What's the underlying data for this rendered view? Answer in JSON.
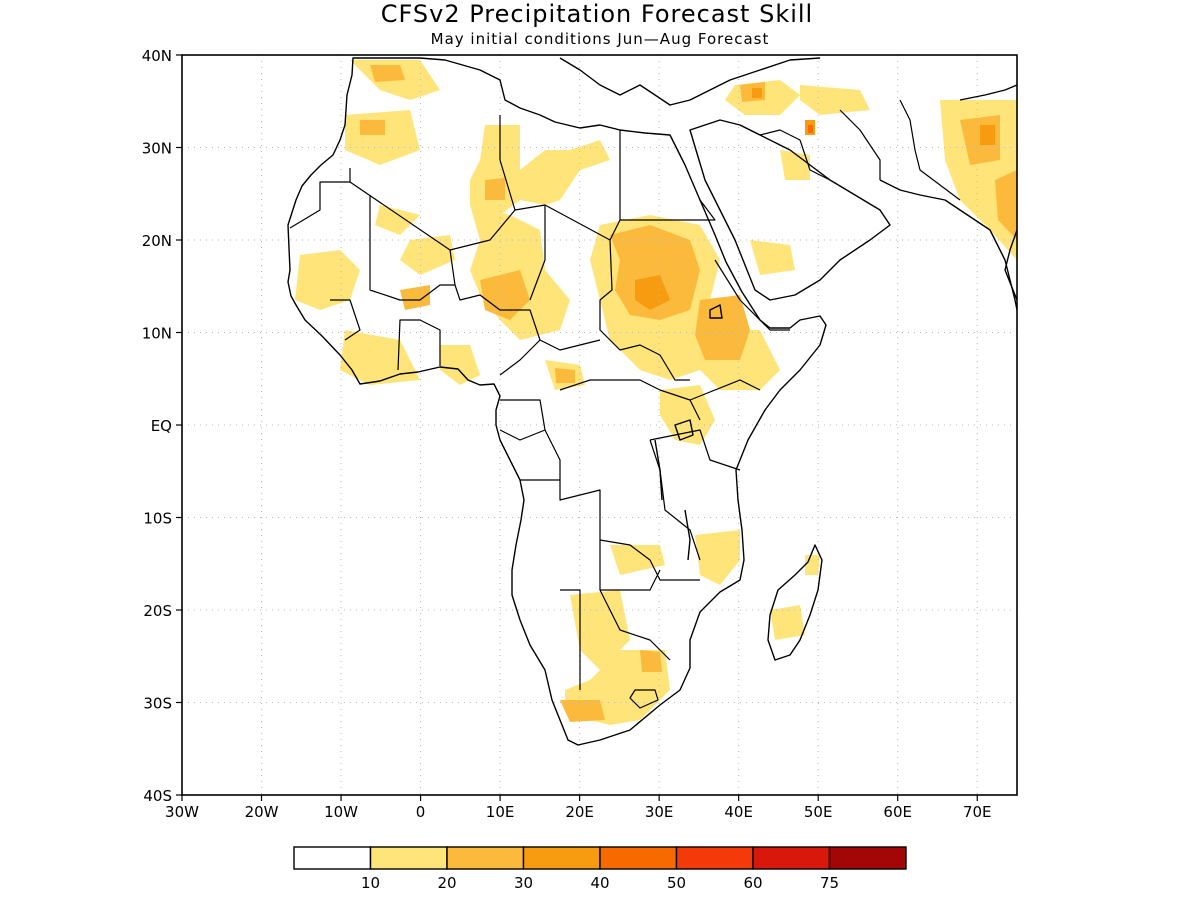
{
  "title": "CFSv2 Precipitation Forecast Skill",
  "subtitle": "May initial conditions  Jun—Aug Forecast",
  "map": {
    "lon_range": [
      -30,
      75
    ],
    "lat_range": [
      -40,
      40
    ],
    "grid": "dotted",
    "x_ticks": [
      "30W",
      "20W",
      "10W",
      "0",
      "10E",
      "20E",
      "30E",
      "40E",
      "50E",
      "60E",
      "70E"
    ],
    "y_ticks": [
      "40N",
      "30N",
      "20N",
      "10N",
      "EQ",
      "10S",
      "20S",
      "30S",
      "40S"
    ]
  },
  "colorbar": {
    "labels": [
      "10",
      "20",
      "30",
      "40",
      "50",
      "60",
      "75"
    ],
    "colors": [
      "#ffffff",
      "#ffe47a",
      "#fbba3c",
      "#f79b10",
      "#f76a00",
      "#f53a0a",
      "#d9180c",
      "#a30606"
    ]
  }
}
